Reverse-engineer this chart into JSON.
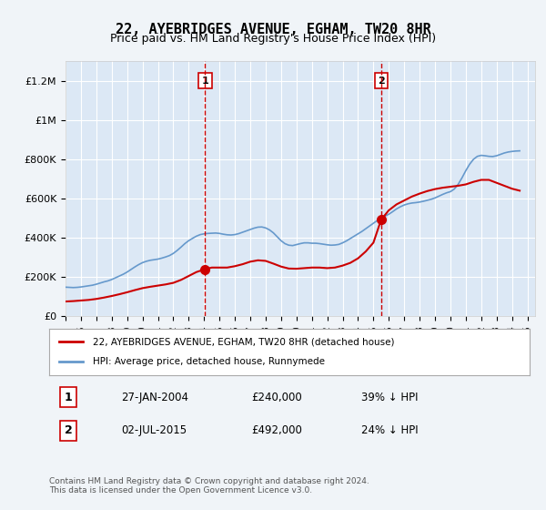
{
  "title": "22, AYEBRIDGES AVENUE, EGHAM, TW20 8HR",
  "subtitle": "Price paid vs. HM Land Registry's House Price Index (HPI)",
  "legend_line1": "22, AYEBRIDGES AVENUE, EGHAM, TW20 8HR (detached house)",
  "legend_line2": "HPI: Average price, detached house, Runnymede",
  "sale1_label": "1",
  "sale1_date": "27-JAN-2004",
  "sale1_price": "£240,000",
  "sale1_hpi": "39% ↓ HPI",
  "sale2_label": "2",
  "sale2_date": "02-JUL-2015",
  "sale2_price": "£492,000",
  "sale2_hpi": "24% ↓ HPI",
  "footnote": "Contains HM Land Registry data © Crown copyright and database right 2024.\nThis data is licensed under the Open Government Licence v3.0.",
  "background_color": "#f0f4f8",
  "plot_bg_color": "#dce8f5",
  "red_line_color": "#cc0000",
  "blue_line_color": "#6699cc",
  "vline_color": "#cc0000",
  "marker_color": "#cc0000",
  "grid_color": "#ffffff",
  "ylim": [
    0,
    1300000
  ],
  "yticks": [
    0,
    200000,
    400000,
    600000,
    800000,
    1000000,
    1200000
  ],
  "ytick_labels": [
    "£0",
    "£200K",
    "£400K",
    "£600K",
    "£800K",
    "£1M",
    "£1.2M"
  ],
  "xmin": 1995.0,
  "xmax": 2025.5,
  "sale1_x": 2004.07,
  "sale1_y": 240000,
  "sale2_x": 2015.5,
  "sale2_y": 492000,
  "hpi_years": [
    1995.0,
    1995.25,
    1995.5,
    1995.75,
    1996.0,
    1996.25,
    1996.5,
    1996.75,
    1997.0,
    1997.25,
    1997.5,
    1997.75,
    1998.0,
    1998.25,
    1998.5,
    1998.75,
    1999.0,
    1999.25,
    1999.5,
    1999.75,
    2000.0,
    2000.25,
    2000.5,
    2000.75,
    2001.0,
    2001.25,
    2001.5,
    2001.75,
    2002.0,
    2002.25,
    2002.5,
    2002.75,
    2003.0,
    2003.25,
    2003.5,
    2003.75,
    2004.0,
    2004.25,
    2004.5,
    2004.75,
    2005.0,
    2005.25,
    2005.5,
    2005.75,
    2006.0,
    2006.25,
    2006.5,
    2006.75,
    2007.0,
    2007.25,
    2007.5,
    2007.75,
    2008.0,
    2008.25,
    2008.5,
    2008.75,
    2009.0,
    2009.25,
    2009.5,
    2009.75,
    2010.0,
    2010.25,
    2010.5,
    2010.75,
    2011.0,
    2011.25,
    2011.5,
    2011.75,
    2012.0,
    2012.25,
    2012.5,
    2012.75,
    2013.0,
    2013.25,
    2013.5,
    2013.75,
    2014.0,
    2014.25,
    2014.5,
    2014.75,
    2015.0,
    2015.25,
    2015.5,
    2015.75,
    2016.0,
    2016.25,
    2016.5,
    2016.75,
    2017.0,
    2017.25,
    2017.5,
    2017.75,
    2018.0,
    2018.25,
    2018.5,
    2018.75,
    2019.0,
    2019.25,
    2019.5,
    2019.75,
    2020.0,
    2020.25,
    2020.5,
    2020.75,
    2021.0,
    2021.25,
    2021.5,
    2021.75,
    2022.0,
    2022.25,
    2022.5,
    2022.75,
    2023.0,
    2023.25,
    2023.5,
    2023.75,
    2024.0,
    2024.25,
    2024.5
  ],
  "hpi_values": [
    148000,
    147000,
    146000,
    147000,
    149000,
    152000,
    155000,
    158000,
    163000,
    169000,
    175000,
    180000,
    187000,
    196000,
    205000,
    214000,
    225000,
    238000,
    251000,
    263000,
    273000,
    280000,
    285000,
    288000,
    291000,
    296000,
    302000,
    309000,
    320000,
    335000,
    352000,
    370000,
    385000,
    397000,
    408000,
    416000,
    420000,
    422000,
    423000,
    424000,
    422000,
    418000,
    415000,
    414000,
    416000,
    421000,
    428000,
    435000,
    442000,
    449000,
    454000,
    455000,
    450000,
    440000,
    425000,
    405000,
    385000,
    370000,
    362000,
    360000,
    365000,
    370000,
    374000,
    374000,
    372000,
    372000,
    370000,
    367000,
    364000,
    362000,
    363000,
    366000,
    374000,
    384000,
    396000,
    408000,
    420000,
    432000,
    446000,
    460000,
    474000,
    488000,
    500000,
    510000,
    520000,
    533000,
    547000,
    558000,
    567000,
    573000,
    577000,
    579000,
    582000,
    586000,
    591000,
    596000,
    603000,
    612000,
    621000,
    629000,
    635000,
    648000,
    672000,
    705000,
    742000,
    775000,
    800000,
    815000,
    820000,
    818000,
    815000,
    814000,
    818000,
    825000,
    832000,
    837000,
    840000,
    842000,
    843000
  ],
  "red_years": [
    1995.0,
    1995.5,
    1996.0,
    1996.5,
    1997.0,
    1997.5,
    1998.0,
    1998.5,
    1999.0,
    1999.5,
    2000.0,
    2000.5,
    2001.0,
    2001.5,
    2002.0,
    2002.5,
    2003.0,
    2003.5,
    2004.07,
    2004.5,
    2005.0,
    2005.5,
    2006.0,
    2006.5,
    2007.0,
    2007.5,
    2008.0,
    2008.5,
    2009.0,
    2009.5,
    2010.0,
    2010.5,
    2011.0,
    2011.5,
    2012.0,
    2012.5,
    2013.0,
    2013.5,
    2014.0,
    2014.5,
    2015.0,
    2015.5,
    2016.0,
    2016.5,
    2017.0,
    2017.5,
    2018.0,
    2018.5,
    2019.0,
    2019.5,
    2020.0,
    2020.5,
    2021.0,
    2021.5,
    2022.0,
    2022.5,
    2023.0,
    2023.5,
    2024.0,
    2024.5
  ],
  "red_values": [
    75000,
    77000,
    80000,
    83000,
    88000,
    95000,
    103000,
    112000,
    122000,
    133000,
    143000,
    150000,
    156000,
    162000,
    170000,
    185000,
    205000,
    225000,
    240000,
    248000,
    248000,
    248000,
    255000,
    265000,
    278000,
    285000,
    282000,
    268000,
    253000,
    243000,
    242000,
    245000,
    248000,
    248000,
    245000,
    248000,
    258000,
    272000,
    295000,
    330000,
    375000,
    492000,
    540000,
    570000,
    590000,
    610000,
    625000,
    638000,
    648000,
    655000,
    660000,
    665000,
    672000,
    685000,
    695000,
    695000,
    680000,
    665000,
    650000,
    640000
  ]
}
